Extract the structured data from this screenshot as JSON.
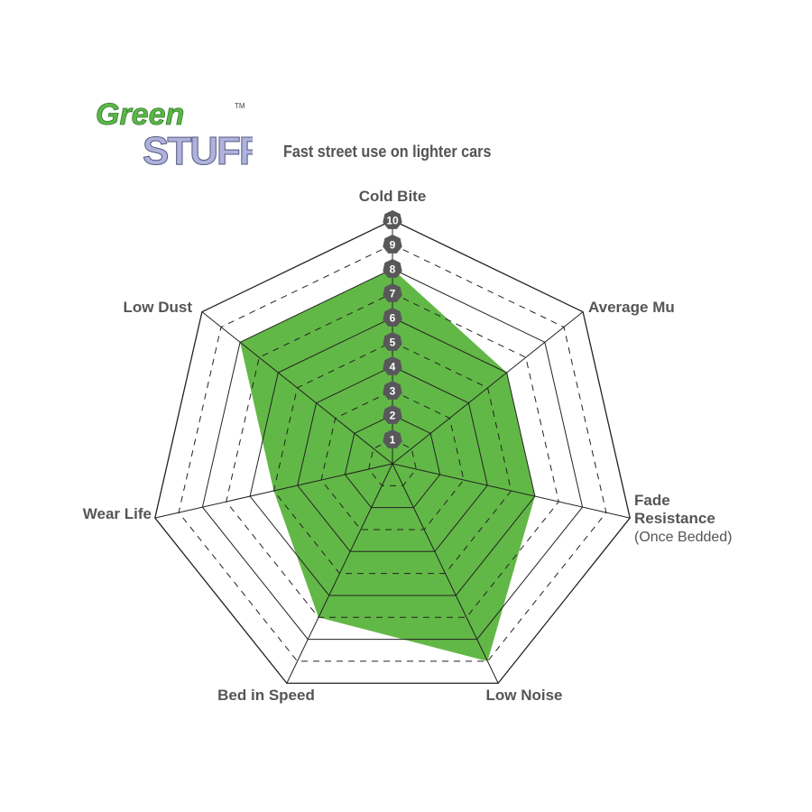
{
  "logo": {
    "line1": "Green",
    "line2": "STUFF",
    "trademark": "TM"
  },
  "chart_data": {
    "type": "radar",
    "title": "Fast street use on lighter cars",
    "axes": [
      {
        "label": "Cold Bite",
        "sublabel": ""
      },
      {
        "label": "Average Mu",
        "sublabel": ""
      },
      {
        "label": "Fade Resistance",
        "sublabel": "(Once Bedded)"
      },
      {
        "label": "Low Noise",
        "sublabel": ""
      },
      {
        "label": "Bed in Speed",
        "sublabel": ""
      },
      {
        "label": "Wear Life",
        "sublabel": ""
      },
      {
        "label": "Low Dust",
        "sublabel": ""
      }
    ],
    "values": [
      8,
      6,
      6,
      9,
      7,
      5,
      8
    ],
    "range": [
      0,
      10
    ],
    "scale_labels": [
      "1",
      "2",
      "3",
      "4",
      "5",
      "6",
      "7",
      "8",
      "9",
      "10"
    ],
    "fill_color": "#62b846",
    "marker_color": "#58585a"
  }
}
